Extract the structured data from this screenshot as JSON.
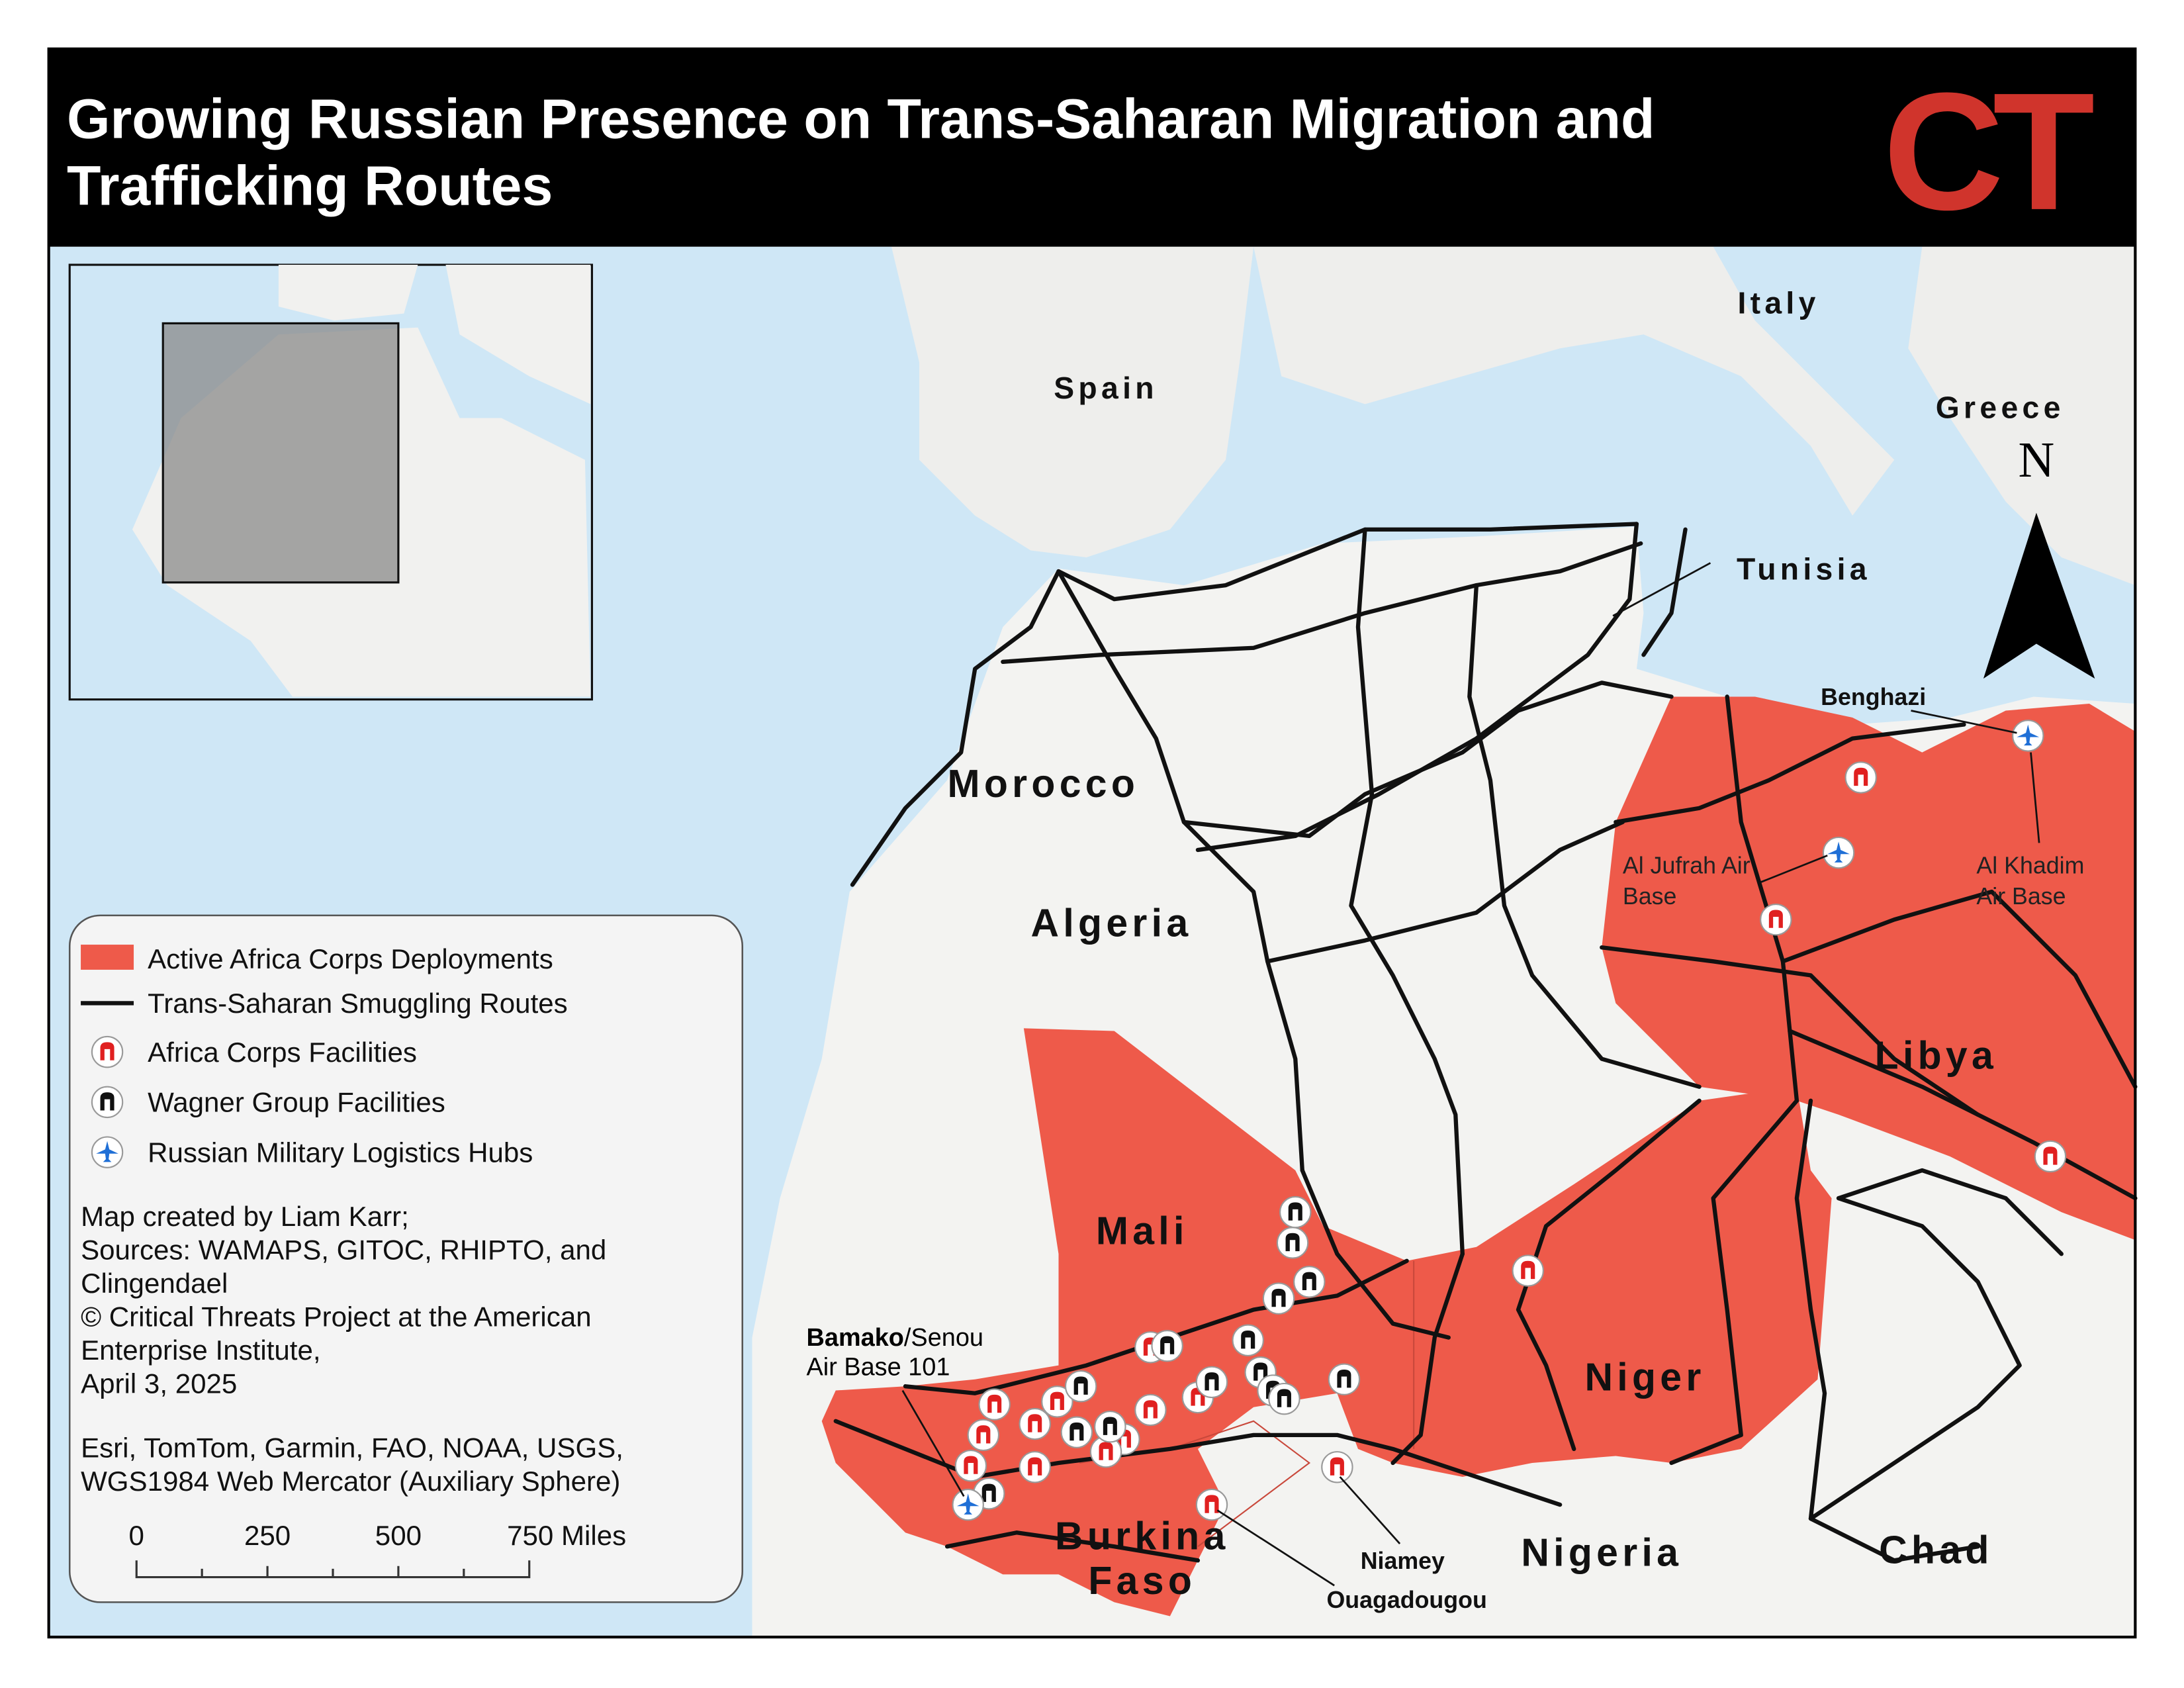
{
  "header": {
    "title_lines": [
      "Growing Russian Presence on Trans-Saharan Migration and",
      "Trafficking Routes"
    ],
    "logo": "CT"
  },
  "map": {
    "countries": [
      "Italy",
      "Spain",
      "Greece",
      "Tunisia",
      "Morocco",
      "Algeria",
      "Libya",
      "Mali",
      "Niger",
      "Nigeria",
      "Chad",
      "Burkina",
      "Faso"
    ],
    "places": {
      "benghazi": "Benghazi",
      "al_jufrah": [
        "Al Jufrah Air",
        "Base"
      ],
      "al_khadim": [
        "Al Khadim",
        "Air Base"
      ],
      "bamako": "Bamako",
      "senou": [
        "/Senou",
        "Air Base 101"
      ],
      "niamey": "Niamey",
      "ouagadougou": "Ouagadougou"
    },
    "north": "N"
  },
  "legend": {
    "items": [
      "Active Africa Corps Deployments",
      "Trans-Saharan Smuggling Routes",
      "Africa Corps Facilities",
      "Wagner Group Facilities",
      "Russian Military Logistics Hubs"
    ],
    "credits": [
      "Map created by Liam Karr;",
      "Sources: WAMAPS, GITOC, RHIPTO, and",
      "Clingendael",
      "© Critical Threats Project at the American",
      "Enterprise Institute,",
      "April 3, 2025"
    ],
    "attribution": [
      "Esri, TomTom, Garmin, FAO, NOAA, USGS,",
      "WGS1984 Web Mercator (Auxiliary Sphere)"
    ],
    "scale_labels": [
      "0",
      "250",
      "500",
      "750 Miles"
    ]
  }
}
